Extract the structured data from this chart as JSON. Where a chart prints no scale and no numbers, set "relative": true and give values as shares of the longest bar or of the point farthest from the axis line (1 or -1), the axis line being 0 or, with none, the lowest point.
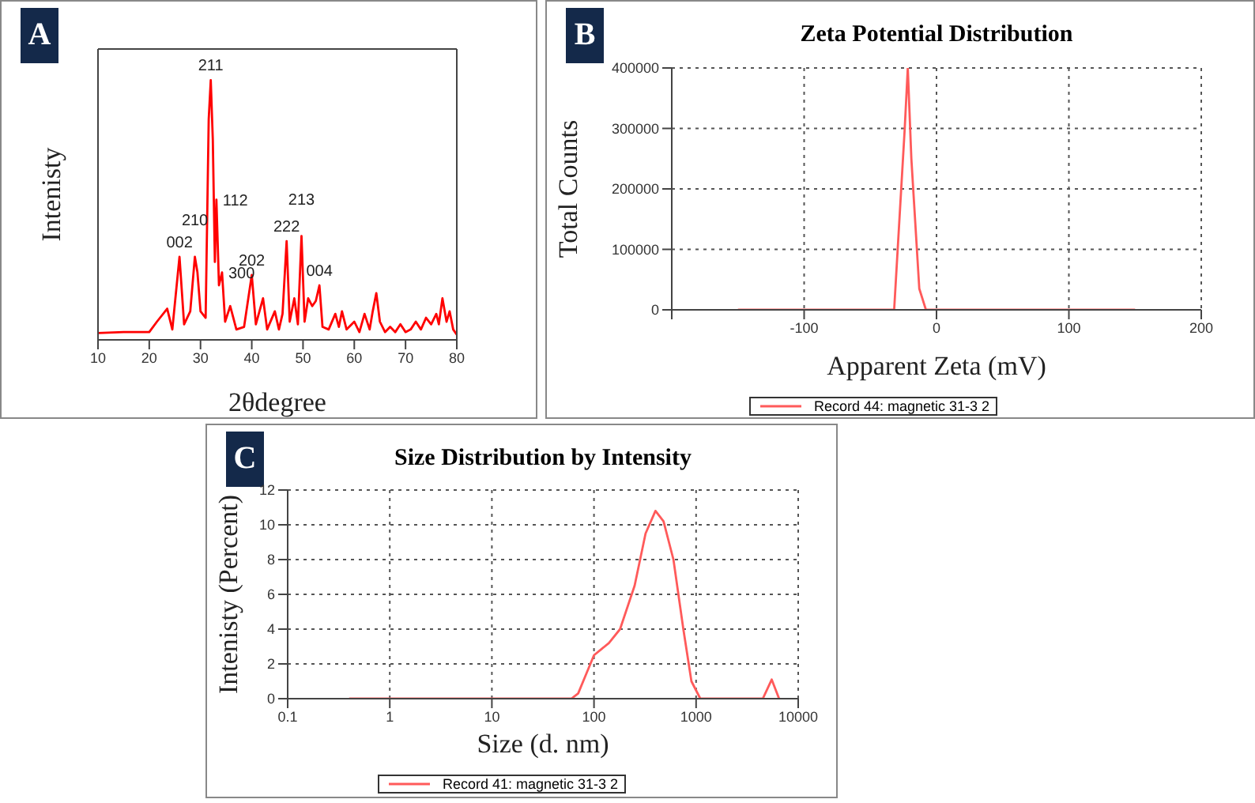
{
  "chart_data": [
    {
      "type": "line",
      "xlabel": "2θdegree",
      "ylabel": "Intenisty",
      "relative": true,
      "tick_labels": "x",
      "grid": false,
      "xlim": [
        10,
        80
      ],
      "xticks": [
        10,
        20,
        30,
        40,
        50,
        60,
        70,
        80
      ],
      "annotations": [
        "A",
        {
          "text": "002",
          "x": 25.9,
          "y": 0.32
        },
        {
          "text": "210",
          "x": 28.9,
          "y": 0.32
        },
        {
          "text": "211",
          "x": 32,
          "y": 1
        },
        {
          "text": "112",
          "x": 33.1,
          "y": 0.54
        },
        {
          "text": "300",
          "x": 34.2,
          "y": 0.26
        },
        {
          "text": "202",
          "x": 40,
          "y": 0.25
        },
        {
          "text": "222",
          "x": 46.8,
          "y": 0.38
        },
        {
          "text": "213",
          "x": 49.7,
          "y": 0.4
        },
        {
          "text": "004",
          "x": 53.2,
          "y": 0.21
        }
      ],
      "series": [
        {
          "color": "#ff0000",
          "x": [
            10,
            15,
            20,
            21.5,
            23.5,
            24.5,
            25.9,
            26.8,
            28,
            28.9,
            29.4,
            30,
            31,
            31.6,
            32,
            32.4,
            32.8,
            33.1,
            33.6,
            34.2,
            34.8,
            35.8,
            37,
            38.5,
            40,
            40.8,
            42.2,
            43,
            44.5,
            45.3,
            46,
            46.8,
            47.4,
            48.3,
            49,
            49.7,
            50.3,
            51,
            51.8,
            52.5,
            53.2,
            53.8,
            55,
            56.3,
            57,
            57.6,
            58.5,
            60,
            61,
            62,
            63,
            63.6,
            64.3,
            65,
            66,
            67,
            68,
            69,
            70,
            71,
            72,
            73,
            74,
            75,
            76,
            76.5,
            77.2,
            78,
            78.6,
            79.3,
            80
          ],
          "values": [
            0.026,
            0.03,
            0.03,
            0.07,
            0.12,
            0.04,
            0.32,
            0.06,
            0.11,
            0.32,
            0.26,
            0.11,
            0.085,
            0.85,
            1,
            0.77,
            0.3,
            0.54,
            0.21,
            0.26,
            0.07,
            0.13,
            0.04,
            0.05,
            0.25,
            0.06,
            0.16,
            0.04,
            0.11,
            0.04,
            0.1,
            0.38,
            0.07,
            0.16,
            0.06,
            0.4,
            0.07,
            0.16,
            0.13,
            0.15,
            0.21,
            0.05,
            0.04,
            0.1,
            0.05,
            0.11,
            0.04,
            0.07,
            0.03,
            0.1,
            0.04,
            0.11,
            0.18,
            0.07,
            0.03,
            0.05,
            0.03,
            0.06,
            0.03,
            0.04,
            0.07,
            0.04,
            0.085,
            0.06,
            0.1,
            0.06,
            0.16,
            0.07,
            0.11,
            0.04,
            0.02
          ]
        }
      ]
    },
    {
      "type": "line",
      "title": "Zeta Potential Distribution",
      "xlabel": "Apparent Zeta (mV)",
      "ylabel": "Total Counts",
      "annotations": [
        "B"
      ],
      "grid": true,
      "legend": "bottom",
      "xlim": [
        -200,
        200
      ],
      "xticks": [
        {
          "value": -200,
          "label": null
        },
        -100,
        0,
        100,
        200
      ],
      "ylim": [
        0,
        400000
      ],
      "yticks": [
        0,
        100000,
        200000,
        300000,
        400000
      ],
      "series": [
        {
          "name": "Record 44: magnetic 31-3 2",
          "color": "#ff5a5a",
          "x": [
            -150,
            -32,
            -24,
            -21.7,
            -19,
            -13,
            -8,
            150
          ],
          "values": [
            0,
            0,
            300000,
            400000,
            250000,
            35000,
            0,
            0
          ]
        }
      ]
    },
    {
      "type": "line",
      "title": "Size Distribution by Intensity",
      "xlabel": "Size (d. nm)",
      "ylabel": "Intenisty (Percent)",
      "annotations": [
        "C"
      ],
      "grid": true,
      "legend": "bottom",
      "log": "x",
      "xlim": [
        0.1,
        10000
      ],
      "xticks": [
        0.1,
        1,
        10,
        100,
        1000,
        10000
      ],
      "ylim": [
        0,
        12
      ],
      "yticks": [
        0,
        2,
        4,
        6,
        8,
        10,
        12
      ],
      "series": [
        {
          "name": "Record 41: magnetic 31-3 2",
          "color": "#ff5a5a",
          "x": [
            0.4,
            60,
            70,
            85,
            100,
            140,
            180,
            250,
            320,
            400,
            480,
            600,
            750,
            900,
            1100,
            4500,
            5500,
            6500
          ],
          "values": [
            0,
            0,
            0.3,
            1.5,
            2.5,
            3.2,
            4,
            6.5,
            9.5,
            10.8,
            10.2,
            8,
            4,
            1,
            0,
            0,
            1.1,
            0
          ]
        }
      ]
    }
  ]
}
